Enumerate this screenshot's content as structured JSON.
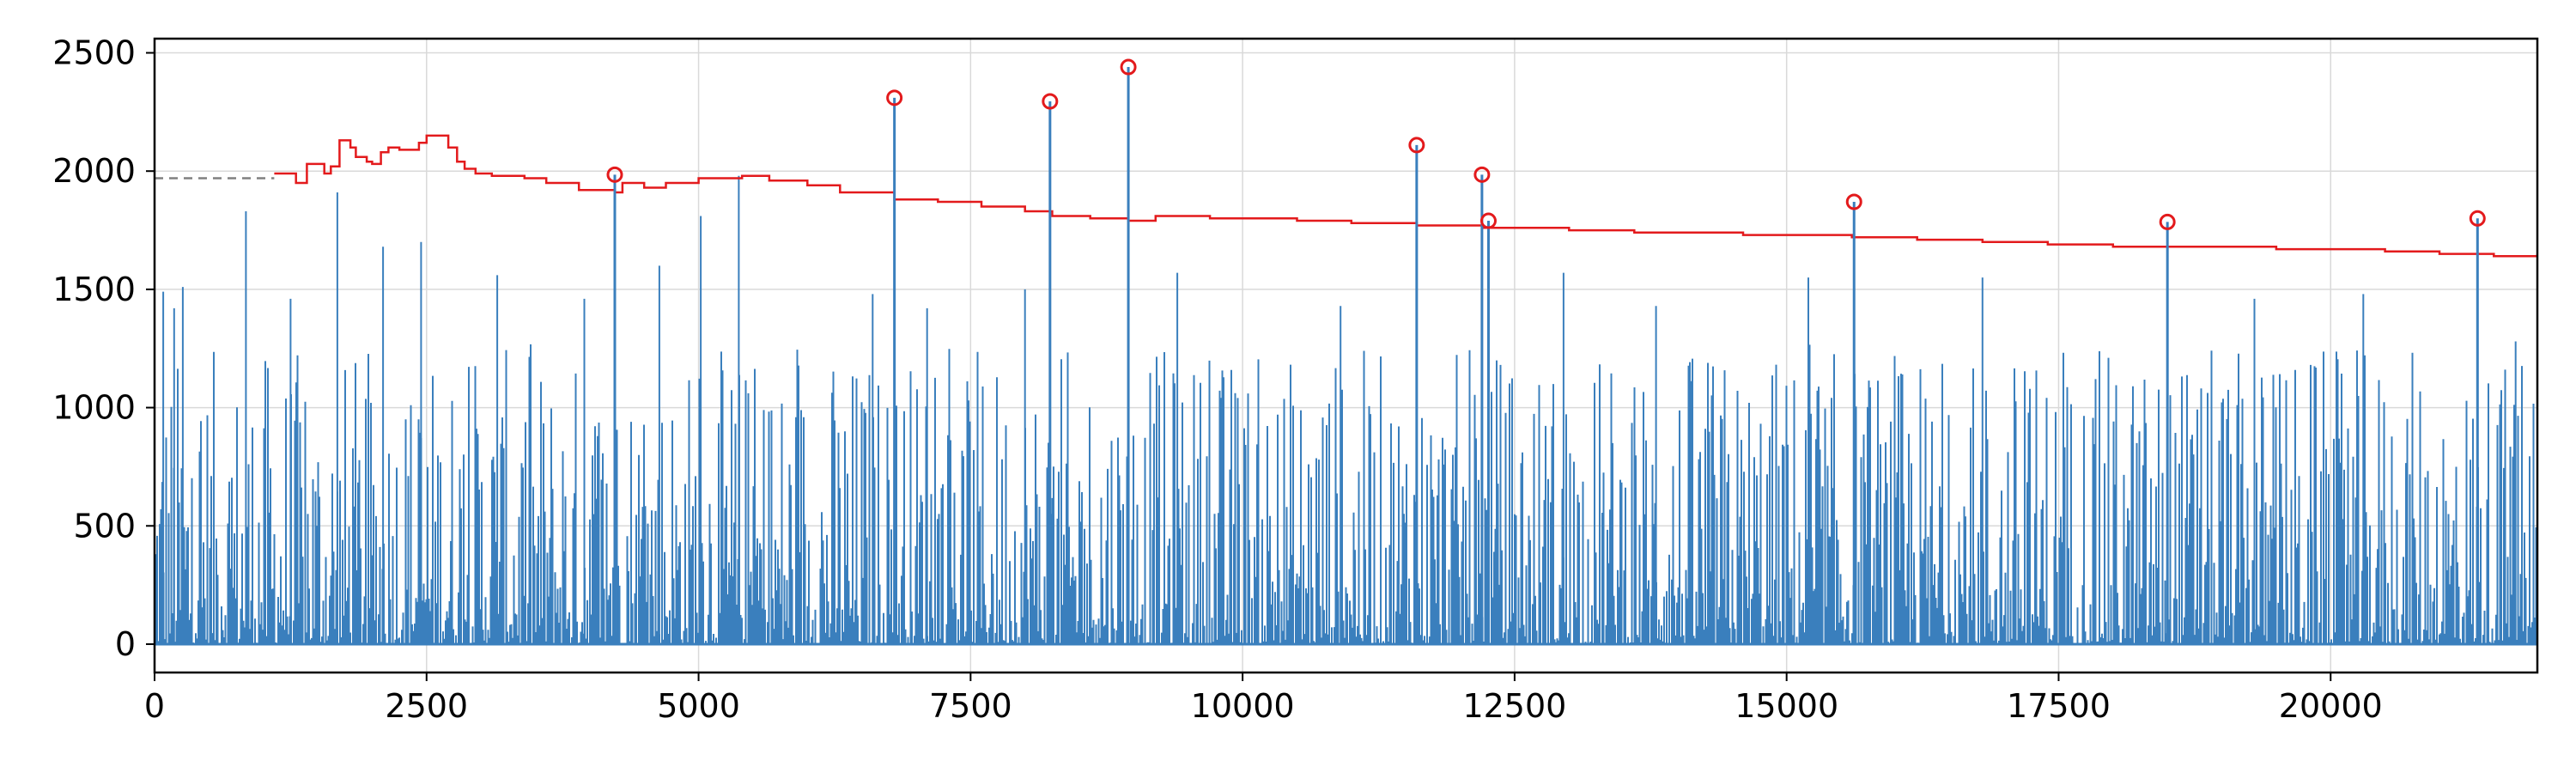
{
  "chart_data": {
    "type": "line",
    "title": "",
    "xlabel": "",
    "ylabel": "",
    "xlim": [
      0,
      21900
    ],
    "ylim": [
      -120,
      2560
    ],
    "grid": true,
    "legend": "none",
    "x_ticks": [
      0,
      2500,
      5000,
      7500,
      10000,
      12500,
      15000,
      17500,
      20000
    ],
    "x_tick_labels": [
      "0",
      "2500",
      "5000",
      "7500",
      "10000",
      "12500",
      "15000",
      "17500",
      "20000"
    ],
    "y_ticks": [
      0,
      500,
      1000,
      1500,
      2000,
      2500
    ],
    "y_tick_labels": [
      "0",
      "500",
      "1000",
      "1500",
      "2000",
      "2500"
    ],
    "colors": {
      "signal": "#3a7fbd",
      "threshold": "#e31a1c",
      "baseline": "#808080",
      "peaks": "#e31a1c",
      "grid": "#d9d9d9"
    },
    "series": [
      {
        "role": "signal",
        "style": "dense-vertical-lines",
        "x_range": [
          0,
          21900
        ],
        "typical_max": 1000,
        "notable_spikes": [
          {
            "x": 80,
            "y": 1490
          },
          {
            "x": 180,
            "y": 1420
          },
          {
            "x": 260,
            "y": 1510
          },
          {
            "x": 840,
            "y": 1830
          },
          {
            "x": 1250,
            "y": 1460
          },
          {
            "x": 1680,
            "y": 1910
          },
          {
            "x": 2100,
            "y": 1680
          },
          {
            "x": 2450,
            "y": 1700
          },
          {
            "x": 3150,
            "y": 1560
          },
          {
            "x": 3950,
            "y": 1460
          },
          {
            "x": 4640,
            "y": 1600
          },
          {
            "x": 5020,
            "y": 1810
          },
          {
            "x": 5370,
            "y": 1980
          },
          {
            "x": 6600,
            "y": 1480
          },
          {
            "x": 7100,
            "y": 1420
          },
          {
            "x": 8000,
            "y": 1500
          },
          {
            "x": 9400,
            "y": 1570
          },
          {
            "x": 10900,
            "y": 1430
          },
          {
            "x": 12950,
            "y": 1570
          },
          {
            "x": 13800,
            "y": 1430
          },
          {
            "x": 15200,
            "y": 1550
          },
          {
            "x": 16800,
            "y": 1550
          },
          {
            "x": 19300,
            "y": 1460
          },
          {
            "x": 20300,
            "y": 1480
          },
          {
            "x": 21700,
            "y": 1280
          }
        ]
      },
      {
        "role": "threshold",
        "style": "step",
        "points": [
          [
            1100,
            1990
          ],
          [
            1250,
            1990
          ],
          [
            1300,
            1950
          ],
          [
            1400,
            2030
          ],
          [
            1500,
            2030
          ],
          [
            1560,
            1990
          ],
          [
            1620,
            2020
          ],
          [
            1700,
            2130
          ],
          [
            1800,
            2100
          ],
          [
            1850,
            2060
          ],
          [
            1950,
            2040
          ],
          [
            2000,
            2030
          ],
          [
            2080,
            2080
          ],
          [
            2150,
            2100
          ],
          [
            2250,
            2090
          ],
          [
            2350,
            2090
          ],
          [
            2430,
            2120
          ],
          [
            2500,
            2150
          ],
          [
            2650,
            2150
          ],
          [
            2700,
            2100
          ],
          [
            2780,
            2040
          ],
          [
            2850,
            2010
          ],
          [
            2950,
            1990
          ],
          [
            3100,
            1980
          ],
          [
            3400,
            1970
          ],
          [
            3600,
            1950
          ],
          [
            3900,
            1920
          ],
          [
            4230,
            1910
          ],
          [
            4300,
            1950
          ],
          [
            4500,
            1930
          ],
          [
            4700,
            1950
          ],
          [
            4900,
            1950
          ],
          [
            5000,
            1970
          ],
          [
            5200,
            1970
          ],
          [
            5400,
            1980
          ],
          [
            5650,
            1960
          ],
          [
            6000,
            1940
          ],
          [
            6300,
            1910
          ],
          [
            6800,
            1880
          ],
          [
            7200,
            1870
          ],
          [
            7600,
            1850
          ],
          [
            8000,
            1830
          ],
          [
            8250,
            1810
          ],
          [
            8600,
            1800
          ],
          [
            8950,
            1790
          ],
          [
            9200,
            1810
          ],
          [
            9700,
            1800
          ],
          [
            10000,
            1800
          ],
          [
            10500,
            1790
          ],
          [
            11000,
            1780
          ],
          [
            11600,
            1770
          ],
          [
            12200,
            1760
          ],
          [
            12500,
            1760
          ],
          [
            13000,
            1750
          ],
          [
            13600,
            1740
          ],
          [
            14000,
            1740
          ],
          [
            14600,
            1730
          ],
          [
            15200,
            1730
          ],
          [
            15600,
            1720
          ],
          [
            16200,
            1710
          ],
          [
            16800,
            1700
          ],
          [
            17400,
            1690
          ],
          [
            18000,
            1680
          ],
          [
            18500,
            1680
          ],
          [
            19000,
            1680
          ],
          [
            19500,
            1670
          ],
          [
            20000,
            1670
          ],
          [
            20500,
            1660
          ],
          [
            21000,
            1650
          ],
          [
            21500,
            1640
          ],
          [
            21900,
            1650
          ]
        ]
      },
      {
        "role": "baseline",
        "style": "dashed",
        "points": [
          [
            0,
            1970
          ],
          [
            1100,
            1970
          ]
        ]
      },
      {
        "role": "peaks",
        "style": "stem-with-circle",
        "points": [
          [
            4230,
            1985
          ],
          [
            6800,
            2310
          ],
          [
            8230,
            2295
          ],
          [
            8950,
            2440
          ],
          [
            11600,
            2110
          ],
          [
            12200,
            1985
          ],
          [
            12260,
            1790
          ],
          [
            15620,
            1870
          ],
          [
            18500,
            1785
          ],
          [
            21350,
            1800
          ]
        ]
      }
    ]
  }
}
